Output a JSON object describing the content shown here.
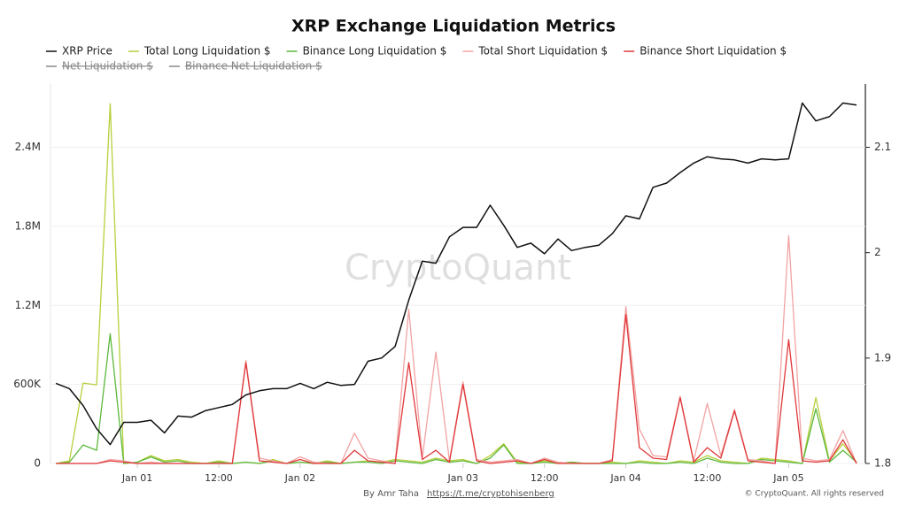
{
  "chart_data": {
    "type": "line",
    "title": "XRP Exchange Liquidation Metrics",
    "watermark": "CryptoQuant",
    "footer": {
      "author": "By Amr Taha",
      "link": "https://t.me/cryptohisenberg",
      "copyright": "© CryptoQuant. All rights reserved"
    },
    "x": [
      0,
      2,
      4,
      6,
      8,
      10,
      12,
      14,
      16,
      18,
      20,
      22,
      24,
      26,
      28,
      30,
      32,
      34,
      36,
      38,
      40,
      42,
      44,
      46,
      48,
      50,
      52,
      54,
      56,
      58,
      60,
      62,
      64,
      66,
      68,
      70,
      72,
      74,
      76,
      78,
      80,
      82,
      84,
      86,
      88,
      90,
      92,
      94,
      96,
      98,
      100,
      102,
      104,
      106,
      108,
      110,
      112,
      114,
      116,
      118
    ],
    "xlim": [
      -0.8,
      119.3
    ],
    "xticks": [
      {
        "value": 12,
        "label": "Jan 01"
      },
      {
        "value": 24,
        "label": "12:00"
      },
      {
        "value": 36,
        "label": "Jan 02"
      },
      {
        "value": 60,
        "label": "Jan 03"
      },
      {
        "value": 72,
        "label": "12:00"
      },
      {
        "value": 84,
        "label": "Jan 04"
      },
      {
        "value": 96,
        "label": "12:00"
      },
      {
        "value": 108,
        "label": "Jan 05"
      }
    ],
    "ylim": [
      0,
      2880000
    ],
    "yticks": [
      0,
      {
        "value": 600000,
        "label": "600K"
      },
      {
        "value": 1200000,
        "label": "1.2M"
      },
      {
        "value": 1800000,
        "label": "1.8M"
      },
      {
        "value": 2400000,
        "label": "2.4M"
      }
    ],
    "y2lim": [
      1.8,
      2.16
    ],
    "y2ticks": [
      1.8,
      1.9,
      2,
      2.1
    ],
    "grid": true,
    "legend": "top",
    "series": [
      {
        "name": "XRP Price",
        "color": "#111111",
        "axis": "y2",
        "values": [
          1.876,
          1.871,
          1.855,
          1.833,
          1.818,
          1.839,
          1.839,
          1.841,
          1.829,
          1.845,
          1.844,
          1.85,
          1.853,
          1.856,
          1.865,
          1.869,
          1.871,
          1.871,
          1.876,
          1.871,
          1.877,
          1.874,
          1.875,
          1.897,
          1.9,
          1.911,
          1.955,
          1.992,
          1.99,
          2.015,
          2.024,
          2.024,
          2.045,
          2.026,
          2.005,
          2.009,
          1.999,
          2.013,
          2.002,
          2.005,
          2.007,
          2.018,
          2.035,
          2.032,
          2.062,
          2.066,
          2.076,
          2.085,
          2.091,
          2.089,
          2.088,
          2.085,
          2.089,
          2.088,
          2.089,
          2.142,
          2.125,
          2.129,
          2.142,
          2.14
        ]
      },
      {
        "name": "Total Long Liquidation $",
        "color": "#b8cf3c",
        "values": [
          0,
          20000,
          610000,
          597000,
          2730000,
          0,
          10000,
          60000,
          20000,
          30000,
          10000,
          0,
          20000,
          0,
          10000,
          0,
          30000,
          0,
          10000,
          0,
          20000,
          0,
          10000,
          20000,
          10000,
          30000,
          20000,
          10000,
          40000,
          20000,
          30000,
          0,
          60000,
          150000,
          10000,
          0,
          20000,
          0,
          10000,
          0,
          0,
          10000,
          0,
          20000,
          10000,
          0,
          20000,
          10000,
          60000,
          20000,
          10000,
          0,
          40000,
          30000,
          20000,
          0,
          500000,
          20000,
          150000,
          10000
        ]
      },
      {
        "name": "Binance Long Liquidation $",
        "color": "#5cb83c",
        "values": [
          0,
          10000,
          140000,
          100000,
          985000,
          0,
          10000,
          50000,
          10000,
          20000,
          0,
          0,
          10000,
          0,
          10000,
          0,
          20000,
          0,
          10000,
          0,
          10000,
          0,
          10000,
          10000,
          0,
          20000,
          10000,
          0,
          30000,
          10000,
          20000,
          0,
          40000,
          140000,
          0,
          0,
          10000,
          0,
          10000,
          0,
          0,
          0,
          0,
          10000,
          0,
          0,
          10000,
          0,
          40000,
          10000,
          0,
          0,
          30000,
          20000,
          10000,
          0,
          415000,
          10000,
          100000,
          10000
        ]
      },
      {
        "name": "Total Short Liquidation $",
        "color": "#f2a3a3",
        "values": [
          0,
          0,
          0,
          0,
          30000,
          20000,
          0,
          10000,
          0,
          0,
          0,
          0,
          0,
          0,
          780000,
          40000,
          20000,
          0,
          50000,
          10000,
          0,
          0,
          230000,
          40000,
          20000,
          0,
          1170000,
          40000,
          845000,
          20000,
          620000,
          30000,
          10000,
          20000,
          30000,
          0,
          40000,
          10000,
          0,
          0,
          0,
          30000,
          1190000,
          260000,
          60000,
          50000,
          510000,
          20000,
          455000,
          60000,
          410000,
          30000,
          20000,
          0,
          1730000,
          40000,
          20000,
          30000,
          250000,
          0
        ]
      },
      {
        "name": "Binance Short Liquidation $",
        "color": "#e0393b",
        "values": [
          0,
          0,
          0,
          0,
          20000,
          10000,
          0,
          0,
          0,
          0,
          0,
          0,
          0,
          0,
          765000,
          20000,
          10000,
          0,
          30000,
          0,
          0,
          0,
          100000,
          20000,
          10000,
          0,
          765000,
          30000,
          100000,
          10000,
          600000,
          20000,
          0,
          10000,
          20000,
          0,
          30000,
          0,
          0,
          0,
          0,
          20000,
          1130000,
          120000,
          40000,
          30000,
          500000,
          10000,
          120000,
          40000,
          400000,
          20000,
          10000,
          0,
          940000,
          20000,
          10000,
          20000,
          180000,
          0
        ]
      },
      {
        "name": "Net Liquidation $",
        "color": "#888888",
        "visible": false
      },
      {
        "name": "Binance Net Liquidation $",
        "color": "#888888",
        "visible": false
      }
    ]
  }
}
